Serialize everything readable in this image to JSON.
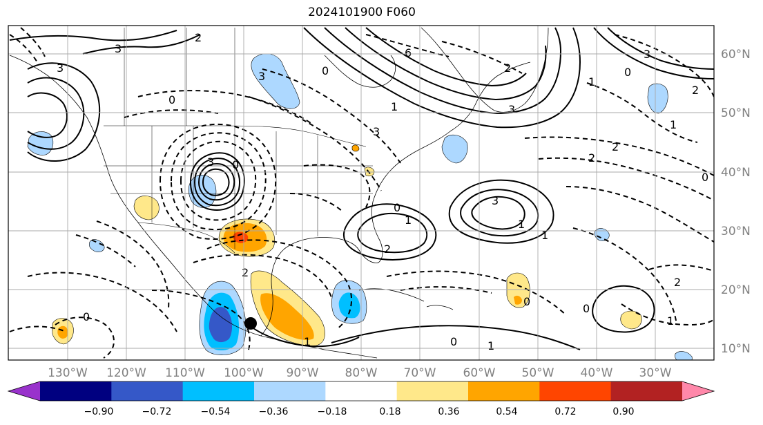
{
  "title": "2024101900 F060",
  "map": {
    "lon_labels": [
      "130°W",
      "120°W",
      "110°W",
      "100°W",
      "90°W",
      "80°W",
      "70°W",
      "60°W",
      "50°W",
      "40°W",
      "30°W"
    ],
    "lat_labels": [
      "10°N",
      "20°N",
      "30°N",
      "40°N",
      "50°N",
      "60°N"
    ],
    "grid_color": "#a9a9a9",
    "contour_labels": [
      "3",
      "2",
      "3",
      "0",
      "3",
      "3",
      "0",
      "6",
      "3",
      "0",
      "1",
      "2",
      "3",
      "0",
      "1",
      "2",
      "1",
      "3",
      "2",
      "3",
      "1",
      "1",
      "2",
      "0",
      "2",
      "1",
      "0",
      "2",
      "0",
      "1",
      "0",
      "0",
      "1",
      "1",
      "0",
      "2"
    ],
    "marker": "storm-center-dot"
  },
  "colorbar": {
    "tick_labels": [
      "−0.90",
      "−0.72",
      "−0.54",
      "−0.36",
      "−0.18",
      "0.18",
      "0.36",
      "0.54",
      "0.72",
      "0.90"
    ],
    "colors": [
      "#9932cc",
      "#000080",
      "#3558c8",
      "#00bfff",
      "#add8ff",
      "#ffffff",
      "#ffe88a",
      "#ffa500",
      "#ff4500",
      "#b22222",
      "#ff88aa"
    ]
  }
}
